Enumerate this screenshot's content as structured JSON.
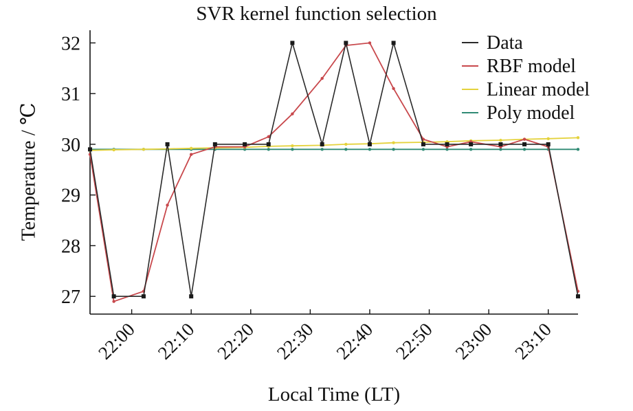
{
  "chart_data": {
    "type": "line",
    "title": "SVR kernel function selection",
    "xlabel": "Local Time (LT)",
    "ylabel": "Temperature / ℃",
    "xlim": [
      "21:53",
      "23:15"
    ],
    "ylim": [
      26.65,
      32.25
    ],
    "x_ticks": [
      "22:00",
      "22:10",
      "22:20",
      "22:30",
      "22:40",
      "22:50",
      "23:00",
      "23:10"
    ],
    "y_ticks": [
      27,
      28,
      29,
      30,
      31,
      32
    ],
    "x": [
      "21:53",
      "21:57",
      "22:02",
      "22:06",
      "22:10",
      "22:14",
      "22:19",
      "22:23",
      "22:27",
      "22:32",
      "22:36",
      "22:40",
      "22:44",
      "22:49",
      "22:53",
      "22:57",
      "23:02",
      "23:06",
      "23:10",
      "23:15"
    ],
    "series": [
      {
        "name": "Data",
        "color": "#2a2a2a",
        "values": [
          29.9,
          27.0,
          27.0,
          30.0,
          27.0,
          30.0,
          30.0,
          30.0,
          32.0,
          30.0,
          32.0,
          30.0,
          32.0,
          30.0,
          30.0,
          30.0,
          30.0,
          30.0,
          30.0,
          27.0
        ]
      },
      {
        "name": "RBF model",
        "color": "#c8484c",
        "values": [
          29.8,
          26.9,
          27.1,
          28.8,
          29.8,
          29.95,
          29.95,
          30.15,
          30.6,
          31.3,
          31.95,
          32.0,
          31.1,
          30.1,
          29.95,
          30.05,
          29.95,
          30.1,
          29.95,
          27.1
        ]
      },
      {
        "name": "Linear model",
        "color": "#e4d23c",
        "values": [
          29.88,
          29.89,
          29.9,
          29.91,
          29.92,
          29.93,
          29.94,
          29.96,
          29.97,
          29.98,
          30.0,
          30.01,
          30.03,
          30.04,
          30.05,
          30.07,
          30.08,
          30.1,
          30.11,
          30.13
        ]
      },
      {
        "name": "Poly model",
        "color": "#2f8a74",
        "values": [
          29.9,
          29.9,
          29.9,
          29.9,
          29.9,
          29.9,
          29.9,
          29.9,
          29.9,
          29.9,
          29.9,
          29.9,
          29.9,
          29.9,
          29.9,
          29.9,
          29.9,
          29.9,
          29.9,
          29.9
        ]
      }
    ],
    "legend_position": "top-right",
    "grid": false
  }
}
